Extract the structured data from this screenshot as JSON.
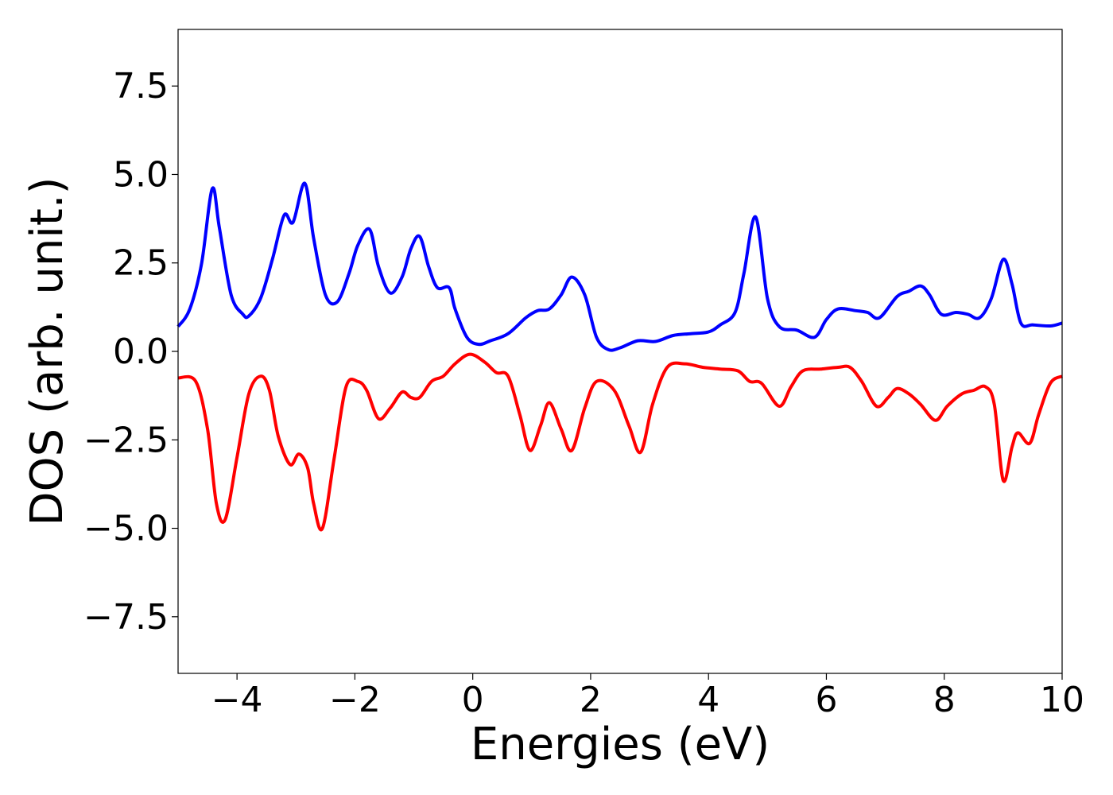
{
  "chart_data": {
    "type": "line",
    "title": "",
    "xlabel": "Energies (eV)",
    "ylabel": "DOS (arb. unit.)",
    "xlim": [
      -5,
      10
    ],
    "ylim": [
      -9.1,
      9.1
    ],
    "grid": false,
    "legend": "none",
    "x_ticks": [
      -4,
      -2,
      0,
      2,
      4,
      6,
      8,
      10
    ],
    "x_tick_labels": [
      "−4",
      "−2",
      "0",
      "2",
      "4",
      "6",
      "8",
      "10"
    ],
    "y_ticks": [
      7.5,
      5.0,
      2.5,
      0.0,
      -2.5,
      -5.0,
      -7.5
    ],
    "y_tick_labels": [
      "7.5",
      "5.0",
      "2.5",
      "0.0",
      "−2.5",
      "−5.0",
      "−7.5"
    ],
    "series": [
      {
        "color": "#0000ff",
        "x": [
          -5.0,
          -4.8,
          -4.6,
          -4.42,
          -4.3,
          -4.1,
          -3.9,
          -3.8,
          -3.6,
          -3.4,
          -3.2,
          -3.05,
          -2.85,
          -2.7,
          -2.5,
          -2.3,
          -2.1,
          -1.95,
          -1.75,
          -1.6,
          -1.4,
          -1.2,
          -1.05,
          -0.9,
          -0.75,
          -0.6,
          -0.4,
          -0.3,
          -0.1,
          0.1,
          0.3,
          0.6,
          0.9,
          1.1,
          1.3,
          1.5,
          1.68,
          1.9,
          2.1,
          2.3,
          2.5,
          2.8,
          3.1,
          3.4,
          3.7,
          4.0,
          4.2,
          4.45,
          4.6,
          4.8,
          5.0,
          5.2,
          5.5,
          5.8,
          6.0,
          6.2,
          6.5,
          6.7,
          6.9,
          7.2,
          7.4,
          7.6,
          7.75,
          7.95,
          8.2,
          8.4,
          8.6,
          8.8,
          9.0,
          9.15,
          9.3,
          9.5,
          9.8,
          10.0
        ],
        "y": [
          0.7,
          1.2,
          2.5,
          4.6,
          3.5,
          1.6,
          1.05,
          1.0,
          1.5,
          2.6,
          3.85,
          3.65,
          4.75,
          3.2,
          1.6,
          1.4,
          2.2,
          3.0,
          3.45,
          2.4,
          1.65,
          2.1,
          2.9,
          3.25,
          2.4,
          1.8,
          1.8,
          1.2,
          0.4,
          0.2,
          0.3,
          0.5,
          0.95,
          1.15,
          1.2,
          1.6,
          2.1,
          1.6,
          0.4,
          0.05,
          0.1,
          0.3,
          0.28,
          0.45,
          0.5,
          0.55,
          0.75,
          1.1,
          2.2,
          3.8,
          1.5,
          0.7,
          0.6,
          0.4,
          0.9,
          1.2,
          1.15,
          1.1,
          0.95,
          1.55,
          1.7,
          1.85,
          1.6,
          1.05,
          1.1,
          1.05,
          0.95,
          1.5,
          2.6,
          1.9,
          0.8,
          0.75,
          0.72,
          0.8
        ]
      },
      {
        "color": "#ff0000",
        "x": [
          -5.0,
          -4.7,
          -4.5,
          -4.35,
          -4.2,
          -4.0,
          -3.8,
          -3.6,
          -3.45,
          -3.3,
          -3.1,
          -2.95,
          -2.8,
          -2.7,
          -2.55,
          -2.35,
          -2.15,
          -1.95,
          -1.8,
          -1.6,
          -1.4,
          -1.2,
          -1.05,
          -0.9,
          -0.7,
          -0.5,
          -0.3,
          -0.05,
          0.2,
          0.4,
          0.6,
          0.8,
          0.97,
          1.15,
          1.3,
          1.5,
          1.68,
          1.9,
          2.1,
          2.4,
          2.65,
          2.85,
          3.05,
          3.3,
          3.6,
          3.9,
          4.2,
          4.5,
          4.7,
          4.9,
          5.2,
          5.4,
          5.6,
          5.9,
          6.2,
          6.4,
          6.6,
          6.85,
          7.05,
          7.2,
          7.4,
          7.6,
          7.85,
          8.05,
          8.3,
          8.5,
          8.7,
          8.85,
          9.0,
          9.15,
          9.25,
          9.45,
          9.6,
          9.8,
          10.0
        ],
        "y": [
          -0.75,
          -0.85,
          -2.2,
          -4.3,
          -4.75,
          -3.0,
          -1.2,
          -0.7,
          -1.1,
          -2.4,
          -3.2,
          -2.9,
          -3.3,
          -4.3,
          -5.0,
          -3.0,
          -1.0,
          -0.85,
          -1.1,
          -1.9,
          -1.6,
          -1.15,
          -1.3,
          -1.3,
          -0.85,
          -0.7,
          -0.35,
          -0.08,
          -0.3,
          -0.6,
          -0.7,
          -1.8,
          -2.8,
          -2.1,
          -1.45,
          -2.2,
          -2.8,
          -1.6,
          -0.85,
          -1.1,
          -2.1,
          -2.85,
          -1.5,
          -0.45,
          -0.35,
          -0.45,
          -0.5,
          -0.55,
          -0.85,
          -0.9,
          -1.55,
          -1.0,
          -0.55,
          -0.5,
          -0.45,
          -0.45,
          -0.85,
          -1.55,
          -1.3,
          -1.05,
          -1.2,
          -1.5,
          -1.95,
          -1.55,
          -1.2,
          -1.1,
          -1.0,
          -1.5,
          -3.65,
          -2.7,
          -2.3,
          -2.6,
          -1.8,
          -0.9,
          -0.7
        ]
      }
    ]
  }
}
